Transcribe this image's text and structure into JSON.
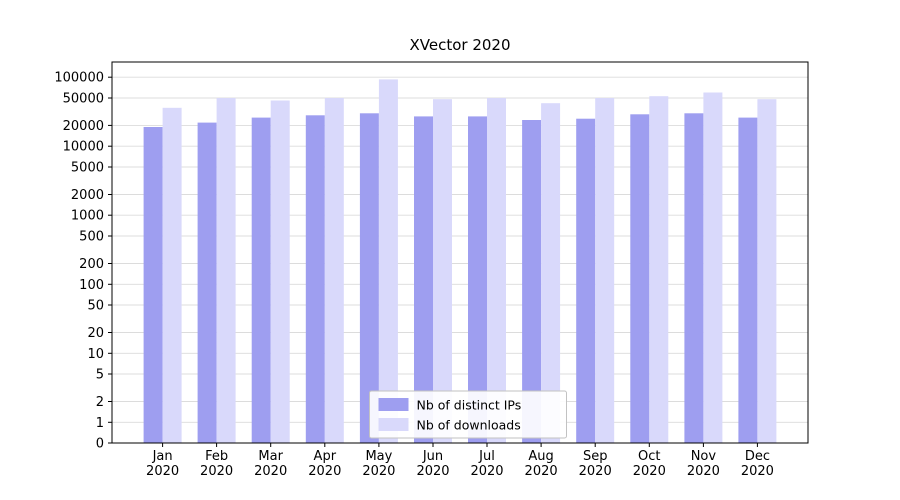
{
  "chart_data": {
    "type": "bar",
    "title": "XVector 2020",
    "categories": [
      "Jan 2020",
      "Feb 2020",
      "Mar 2020",
      "Apr 2020",
      "May 2020",
      "Jun 2020",
      "Jul 2020",
      "Aug 2020",
      "Sep 2020",
      "Oct 2020",
      "Nov 2020",
      "Dec 2020"
    ],
    "series": [
      {
        "name": "Nb of distinct IPs",
        "color": "#9e9ef0",
        "values": [
          19000,
          22000,
          26000,
          28000,
          30000,
          27000,
          27000,
          24000,
          25000,
          29000,
          30000,
          26000
        ]
      },
      {
        "name": "Nb of downloads",
        "color": "#d9d9fb",
        "values": [
          36000,
          50000,
          46000,
          50000,
          93000,
          48000,
          50000,
          42000,
          50000,
          53000,
          60000,
          48000
        ]
      }
    ],
    "yscale": "symlog",
    "yticks": [
      0,
      1,
      2,
      5,
      10,
      20,
      50,
      100,
      200,
      500,
      1000,
      2000,
      5000,
      10000,
      20000,
      50000,
      100000
    ],
    "ylim": [
      0,
      150000
    ],
    "xlabel": "",
    "ylabel": "",
    "grid": true,
    "legend_position": "lower center"
  },
  "colors": {
    "background": "#ffffff",
    "grid": "#dcdcdc",
    "axis": "#000000",
    "text": "#000000",
    "legend_border": "#c2c2c2",
    "legend_background": "#ffffff"
  }
}
